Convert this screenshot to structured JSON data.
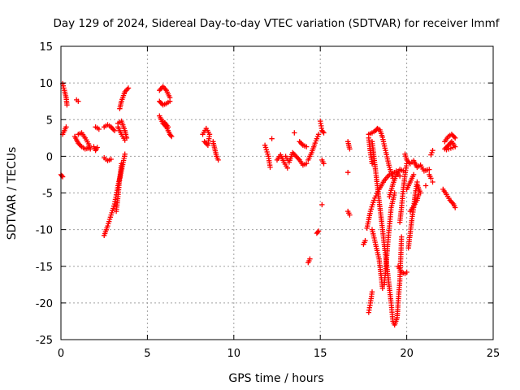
{
  "colors": {
    "series": "#ff0000",
    "grid": "#a0a0a0",
    "axis": "#000000"
  },
  "chart_data": {
    "type": "scatter",
    "title": "Day 129 of 2024, Sidereal Day-to-day VTEC variation (SDTVAR) for receiver lmmf",
    "xlabel": "GPS time / hours",
    "ylabel": "SDTVAR / TECUs",
    "xlim": [
      0,
      25
    ],
    "ylim": [
      -25,
      15
    ],
    "xticks": [
      0,
      5,
      10,
      15,
      20,
      25
    ],
    "yticks": [
      -25,
      -20,
      -15,
      -10,
      -5,
      0,
      5,
      10,
      15
    ],
    "grid": true,
    "marker": "plus",
    "segments": [
      [
        [
          0.1,
          9.9
        ],
        [
          0.2,
          9.0
        ],
        [
          0.3,
          8.0
        ],
        [
          0.35,
          7.0
        ]
      ],
      [
        [
          0.1,
          3.0
        ],
        [
          0.2,
          3.5
        ],
        [
          0.3,
          4.0
        ]
      ],
      [
        [
          0.0,
          -2.5
        ],
        [
          0.1,
          -2.8
        ]
      ],
      [
        [
          0.9,
          7.7
        ],
        [
          1.0,
          7.5
        ]
      ],
      [
        [
          0.8,
          2.7
        ],
        [
          1.0,
          1.8
        ],
        [
          1.2,
          1.3
        ],
        [
          1.4,
          1.0
        ],
        [
          1.6,
          1.1
        ]
      ],
      [
        [
          1.0,
          3.0
        ],
        [
          1.2,
          3.2
        ],
        [
          1.4,
          2.5
        ],
        [
          1.6,
          1.7
        ],
        [
          1.7,
          1.0
        ]
      ],
      [
        [
          1.9,
          1.3
        ],
        [
          2.0,
          0.8
        ],
        [
          2.1,
          1.2
        ]
      ],
      [
        [
          2.0,
          4.0
        ],
        [
          2.2,
          3.7
        ]
      ],
      [
        [
          2.5,
          4.0
        ],
        [
          2.7,
          4.3
        ],
        [
          2.9,
          4.0
        ],
        [
          3.1,
          3.5
        ]
      ],
      [
        [
          2.5,
          -0.2
        ],
        [
          2.7,
          -0.6
        ],
        [
          2.9,
          -0.4
        ]
      ],
      [
        [
          2.5,
          -10.8
        ],
        [
          2.7,
          -9.5
        ],
        [
          2.9,
          -8.0
        ],
        [
          3.1,
          -6.5
        ],
        [
          3.3,
          -4.0
        ],
        [
          3.5,
          -2.0
        ],
        [
          3.7,
          0.3
        ]
      ],
      [
        [
          3.2,
          -7.5
        ],
        [
          3.3,
          -5.5
        ],
        [
          3.4,
          -3.0
        ],
        [
          3.5,
          -1.0
        ]
      ],
      [
        [
          3.3,
          4.5
        ],
        [
          3.5,
          4.8
        ],
        [
          3.7,
          3.5
        ],
        [
          3.8,
          2.5
        ]
      ],
      [
        [
          3.3,
          4.0
        ],
        [
          3.5,
          3.0
        ],
        [
          3.7,
          2.2
        ]
      ],
      [
        [
          3.4,
          6.5
        ],
        [
          3.5,
          7.5
        ],
        [
          3.7,
          8.8
        ],
        [
          3.9,
          9.3
        ]
      ],
      [
        [
          5.7,
          9.0
        ],
        [
          5.9,
          9.5
        ],
        [
          6.1,
          9.0
        ],
        [
          6.3,
          8.0
        ]
      ],
      [
        [
          5.7,
          7.5
        ],
        [
          5.9,
          7.0
        ],
        [
          6.1,
          7.2
        ],
        [
          6.3,
          7.5
        ]
      ],
      [
        [
          5.7,
          5.5
        ],
        [
          5.9,
          4.5
        ],
        [
          6.1,
          4.0
        ],
        [
          6.3,
          3.0
        ],
        [
          6.4,
          2.7
        ]
      ],
      [
        [
          5.8,
          5.0
        ],
        [
          6.0,
          4.6
        ],
        [
          6.2,
          4.0
        ]
      ],
      [
        [
          8.2,
          3.0
        ],
        [
          8.4,
          3.8
        ],
        [
          8.6,
          3.0
        ],
        [
          8.5,
          1.5
        ],
        [
          8.3,
          2.0
        ]
      ],
      [
        [
          8.8,
          2.0
        ],
        [
          8.9,
          1.0
        ],
        [
          9.0,
          0.0
        ],
        [
          9.1,
          -0.5
        ]
      ],
      [
        [
          11.8,
          1.5
        ],
        [
          12.0,
          0.0
        ],
        [
          12.1,
          -1.5
        ]
      ],
      [
        [
          12.2,
          2.4
        ]
      ],
      [
        [
          12.5,
          -0.5
        ],
        [
          12.7,
          0.2
        ],
        [
          12.9,
          -0.8
        ],
        [
          13.1,
          -1.6
        ]
      ],
      [
        [
          13.0,
          0.0
        ],
        [
          13.2,
          -0.8
        ],
        [
          13.4,
          0.5
        ],
        [
          13.6,
          0.0
        ],
        [
          13.8,
          -0.5
        ],
        [
          14.0,
          -1.2
        ],
        [
          14.2,
          -1.0
        ]
      ],
      [
        [
          13.5,
          3.2
        ]
      ],
      [
        [
          13.8,
          2.0
        ],
        [
          14.0,
          1.5
        ],
        [
          14.2,
          1.3
        ]
      ],
      [
        [
          14.3,
          -0.5
        ],
        [
          14.5,
          0.5
        ],
        [
          14.7,
          1.8
        ],
        [
          14.9,
          3.0
        ]
      ],
      [
        [
          14.3,
          -14.5
        ],
        [
          14.4,
          -14.0
        ]
      ],
      [
        [
          14.8,
          -10.5
        ],
        [
          14.9,
          -10.2
        ]
      ],
      [
        [
          15.0,
          4.8
        ],
        [
          15.1,
          3.5
        ],
        [
          15.2,
          3.2
        ]
      ],
      [
        [
          15.1,
          -0.5
        ],
        [
          15.2,
          -1.0
        ]
      ],
      [
        [
          15.1,
          -6.6
        ]
      ],
      [
        [
          16.6,
          2.0
        ],
        [
          16.7,
          1.0
        ]
      ],
      [
        [
          16.6,
          -2.2
        ]
      ],
      [
        [
          16.6,
          -7.5
        ],
        [
          16.7,
          -8.0
        ]
      ],
      [
        [
          17.5,
          -12.0
        ],
        [
          17.6,
          -11.5
        ]
      ],
      [
        [
          17.7,
          -9.8
        ],
        [
          17.9,
          -7.5
        ],
        [
          18.1,
          -6.0
        ],
        [
          18.4,
          -4.5
        ],
        [
          18.7,
          -3.3
        ],
        [
          19.0,
          -2.5
        ],
        [
          19.3,
          -2.2
        ]
      ],
      [
        [
          17.8,
          2.5
        ],
        [
          17.9,
          0.5
        ],
        [
          18.0,
          -1.0
        ]
      ],
      [
        [
          17.8,
          -21.3
        ],
        [
          17.9,
          -20.0
        ],
        [
          18.0,
          -18.5
        ]
      ],
      [
        [
          17.8,
          3.0
        ],
        [
          18.0,
          3.2
        ],
        [
          18.2,
          3.5
        ],
        [
          18.3,
          3.8
        ],
        [
          18.45,
          3.6
        ],
        [
          18.6,
          2.6
        ],
        [
          18.8,
          0.5
        ],
        [
          19.0,
          -1.5
        ],
        [
          19.2,
          -3.0
        ]
      ],
      [
        [
          18.0,
          2.0
        ],
        [
          18.1,
          0.0
        ],
        [
          18.2,
          -2.0
        ],
        [
          18.3,
          -4.0
        ],
        [
          18.4,
          -6.0
        ],
        [
          18.5,
          -8.0
        ],
        [
          18.6,
          -10.0
        ],
        [
          18.7,
          -12.0
        ],
        [
          18.8,
          -14.0
        ],
        [
          18.9,
          -16.0
        ],
        [
          19.0,
          -18.0
        ],
        [
          19.1,
          -20.0
        ],
        [
          19.2,
          -22.5
        ],
        [
          19.3,
          -23.0
        ],
        [
          19.45,
          -22.0
        ],
        [
          19.5,
          -20.0
        ],
        [
          19.6,
          -17.0
        ],
        [
          19.65,
          -14.0
        ],
        [
          19.7,
          -11.0
        ]
      ],
      [
        [
          18.0,
          -10.0
        ],
        [
          18.2,
          -12.0
        ],
        [
          18.4,
          -14.0
        ],
        [
          18.5,
          -16.0
        ],
        [
          18.6,
          -18.0
        ]
      ],
      [
        [
          18.7,
          -17.5
        ],
        [
          18.8,
          -15.0
        ],
        [
          18.9,
          -12.0
        ],
        [
          19.0,
          -9.5
        ],
        [
          19.1,
          -7.0
        ],
        [
          19.3,
          -5.0
        ]
      ],
      [
        [
          19.0,
          -5.5
        ],
        [
          19.2,
          -3.8
        ],
        [
          19.4,
          -2.5
        ],
        [
          19.6,
          -1.8
        ],
        [
          19.8,
          -2.0
        ]
      ],
      [
        [
          19.4,
          -2.0
        ],
        [
          19.5,
          -2.5
        ],
        [
          19.6,
          -2.7
        ]
      ],
      [
        [
          19.5,
          -15.0
        ],
        [
          19.7,
          -15.8
        ],
        [
          19.9,
          -16.0
        ],
        [
          20.0,
          -15.8
        ]
      ],
      [
        [
          19.6,
          -9.0
        ],
        [
          19.7,
          -7.0
        ],
        [
          19.8,
          -4.5
        ],
        [
          19.9,
          -2.5
        ],
        [
          20.0,
          -1.0
        ]
      ],
      [
        [
          19.9,
          0.3
        ],
        [
          20.0,
          -0.5
        ],
        [
          20.2,
          -1.0
        ],
        [
          20.4,
          -0.6
        ],
        [
          20.6,
          -1.5
        ],
        [
          20.8,
          -1.2
        ],
        [
          21.0,
          -2.0
        ],
        [
          21.3,
          -1.8
        ]
      ],
      [
        [
          20.0,
          -4.5
        ],
        [
          20.2,
          -3.5
        ],
        [
          20.4,
          -2.5
        ]
      ],
      [
        [
          20.1,
          -12.5
        ],
        [
          20.2,
          -10.5
        ],
        [
          20.3,
          -8.5
        ],
        [
          20.4,
          -7.0
        ],
        [
          20.5,
          -5.0
        ],
        [
          20.6,
          -3.5
        ]
      ],
      [
        [
          20.2,
          -7.5
        ],
        [
          20.4,
          -6.8
        ],
        [
          20.6,
          -6.0
        ],
        [
          20.7,
          -5.0
        ]
      ],
      [
        [
          20.6,
          -3.8
        ],
        [
          20.7,
          -4.5
        ],
        [
          20.8,
          -5.0
        ]
      ],
      [
        [
          21.1,
          -4.0
        ]
      ],
      [
        [
          21.3,
          -2.5
        ],
        [
          21.4,
          -3.0
        ]
      ],
      [
        [
          21.4,
          0.2
        ],
        [
          21.5,
          0.8
        ]
      ],
      [
        [
          21.5,
          -3.5
        ]
      ],
      [
        [
          22.2,
          2.0
        ],
        [
          22.4,
          2.7
        ],
        [
          22.6,
          3.0
        ],
        [
          22.8,
          2.5
        ]
      ],
      [
        [
          22.2,
          1.0
        ],
        [
          22.4,
          1.5
        ],
        [
          22.6,
          2.0
        ],
        [
          22.8,
          1.3
        ],
        [
          22.3,
          0.9
        ]
      ],
      [
        [
          22.1,
          -4.5
        ],
        [
          22.3,
          -5.2
        ],
        [
          22.5,
          -6.0
        ],
        [
          22.7,
          -6.5
        ],
        [
          22.8,
          -7.0
        ]
      ]
    ]
  }
}
